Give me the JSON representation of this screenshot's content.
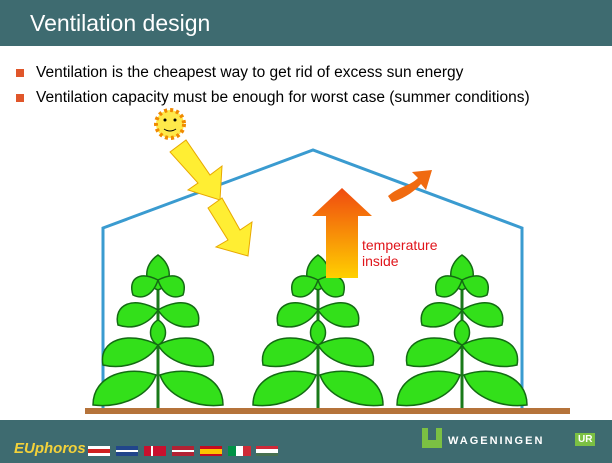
{
  "header": {
    "title": "Ventilation design"
  },
  "bullets": [
    "Ventilation is the cheapest way to get rid of excess sun energy",
    "Ventilation capacity must be enough for worst case (summer conditions)"
  ],
  "labels": {
    "temperature": [
      "temperature",
      "inside"
    ]
  },
  "footer": {
    "left_logo": "EUphoros",
    "right_logo": "WAGENINGEN",
    "right_badge": "UR"
  }
}
